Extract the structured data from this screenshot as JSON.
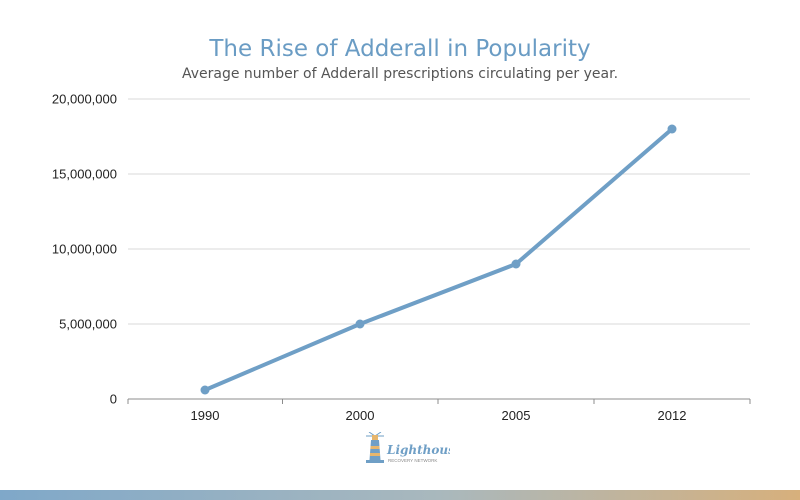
{
  "chart_data": {
    "type": "line",
    "title": "The Rise of Adderall in Popularity",
    "subtitle": "Average number of Adderall prescriptions circulating per year.",
    "categories": [
      "1990",
      "2000",
      "2005",
      "2012"
    ],
    "values": [
      600000,
      5000000,
      9000000,
      18000000
    ],
    "yticks": [
      0,
      5000000,
      10000000,
      15000000,
      20000000
    ],
    "ytick_labels": [
      "0",
      "5,000,000",
      "10,000,000",
      "15,000,000",
      "20,000,000"
    ],
    "ylim": [
      0,
      20000000
    ],
    "xlabel": "",
    "ylabel": "",
    "grid": true,
    "legend": "none",
    "colors": {
      "line": "#6f9fc6",
      "title": "#6a9cc4",
      "grid": "#d9d9d9"
    }
  },
  "logo": {
    "name": "Lighthouse",
    "tagline": "RECOVERY NETWORK"
  }
}
